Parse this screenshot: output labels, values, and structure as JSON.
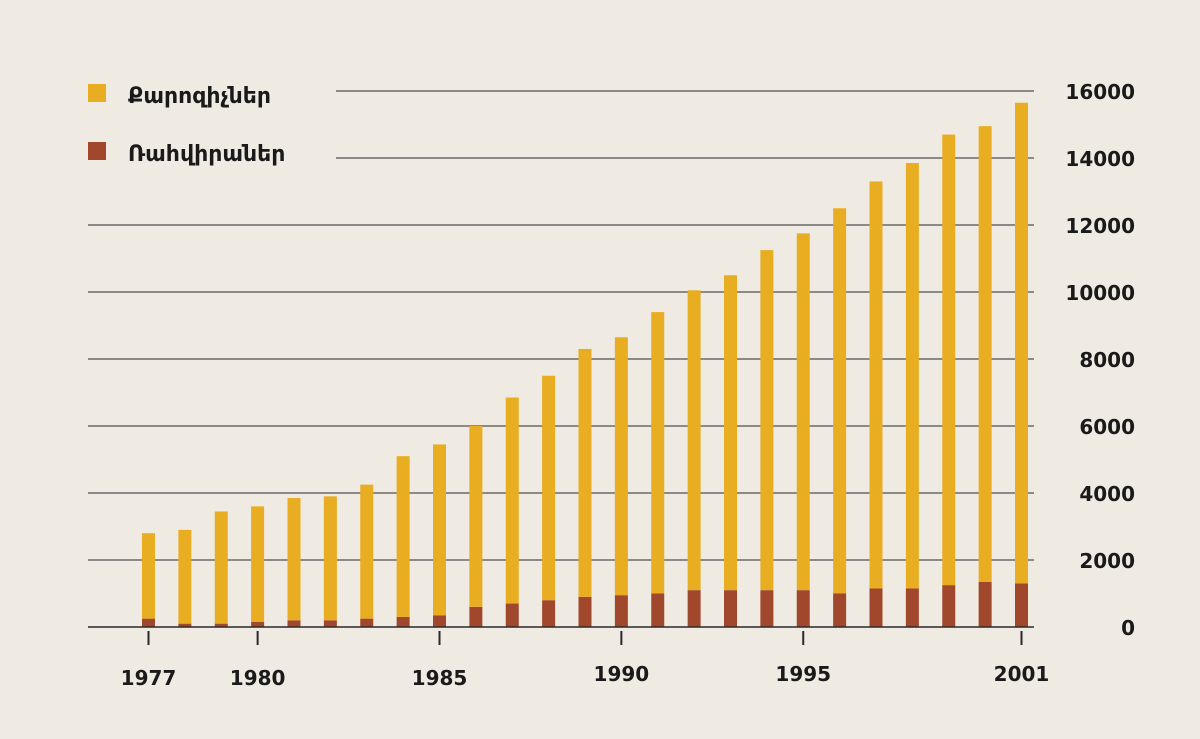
{
  "chart_data": {
    "type": "bar",
    "stacked": true,
    "title": "",
    "xlabel": "",
    "ylabel": "",
    "ylim": [
      0,
      16000
    ],
    "y_ticks": [
      0,
      2000,
      4000,
      6000,
      8000,
      10000,
      12000,
      14000,
      16000
    ],
    "y_axis_side": "right",
    "grid": true,
    "legend_position": "top-left",
    "categories": [
      "1977",
      "1978",
      "1979",
      "1980",
      "1981",
      "1982",
      "1983",
      "1984",
      "1985",
      "1986",
      "1987",
      "1988",
      "1989",
      "1990",
      "1991",
      "1992",
      "1993",
      "1994",
      "1995",
      "1996",
      "1997",
      "1998",
      "1999",
      "2000",
      "2001"
    ],
    "x_tick_labels": [
      "1977",
      "1980",
      "1985",
      "1990",
      "1995",
      "2001"
    ],
    "series": [
      {
        "name": "Ռահվիրաներ",
        "color": "#a0472c",
        "values": [
          250,
          100,
          100,
          150,
          200,
          200,
          250,
          300,
          350,
          600,
          700,
          800,
          900,
          950,
          1000,
          1100,
          1100,
          1100,
          1100,
          1000,
          1150,
          1150,
          1250,
          1350,
          1300
        ]
      },
      {
        "name": "Քարոզիչներ",
        "color": "#e8ad21",
        "values": [
          2550,
          2800,
          3350,
          3450,
          3650,
          3700,
          4000,
          4800,
          5100,
          5400,
          6150,
          6700,
          7400,
          7700,
          8400,
          8950,
          9400,
          10150,
          10650,
          11500,
          12150,
          12700,
          13450,
          13600,
          14350
        ]
      }
    ]
  }
}
